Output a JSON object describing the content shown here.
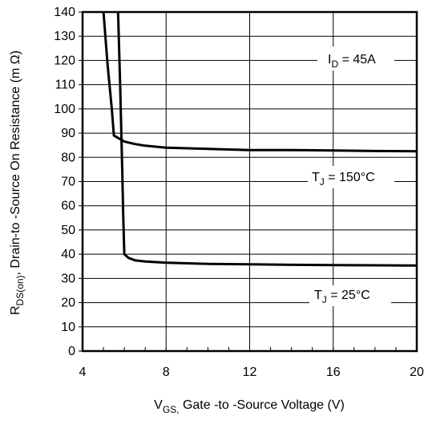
{
  "chart_data": {
    "type": "line",
    "title": "",
    "xlabel": {
      "symbol": "V",
      "subscript": "GS,",
      "text": " Gate -to -Source Voltage  (V)"
    },
    "ylabel": {
      "symbol": "R",
      "subscript": "DS(on)",
      "text": ",  Drain-to -Source On Resistance (m   Ω)"
    },
    "xlim": [
      4,
      20
    ],
    "ylim": [
      0,
      140
    ],
    "xticks": [
      "4",
      "8",
      "12",
      "16",
      "20"
    ],
    "yticks": [
      "0",
      "10",
      "20",
      "30",
      "40",
      "50",
      "60",
      "70",
      "80",
      "90",
      "100",
      "110",
      "120",
      "130",
      "140"
    ],
    "grid": true,
    "annotations": {
      "id": {
        "symbol": "I",
        "subscript": "D",
        "text": " = 45A"
      },
      "t150": {
        "symbol": "T",
        "subscript": "J",
        "text": " = 150°C"
      },
      "t25": {
        "symbol": "T",
        "subscript": "J",
        "text": " = 25°C"
      }
    },
    "series": [
      {
        "name": "T_J = 150°C",
        "points": [
          [
            5.0,
            140
          ],
          [
            5.2,
            118
          ],
          [
            5.4,
            100
          ],
          [
            5.5,
            89
          ],
          [
            5.8,
            87.5
          ],
          [
            6.0,
            86.5
          ],
          [
            6.5,
            85.5
          ],
          [
            7,
            84.8
          ],
          [
            8,
            84
          ],
          [
            10,
            83.5
          ],
          [
            12,
            83
          ],
          [
            14,
            83
          ],
          [
            16,
            82.8
          ],
          [
            18,
            82.6
          ],
          [
            20,
            82.5
          ]
        ]
      },
      {
        "name": "T_J = 25°C",
        "points": [
          [
            5.7,
            140
          ],
          [
            5.8,
            110
          ],
          [
            5.9,
            75
          ],
          [
            5.95,
            55
          ],
          [
            6.0,
            40
          ],
          [
            6.2,
            38.5
          ],
          [
            6.5,
            37.5
          ],
          [
            7,
            37
          ],
          [
            8,
            36.5
          ],
          [
            10,
            36
          ],
          [
            12,
            35.8
          ],
          [
            14,
            35.6
          ],
          [
            16,
            35.5
          ],
          [
            18,
            35.4
          ],
          [
            20,
            35.3
          ]
        ]
      }
    ]
  }
}
